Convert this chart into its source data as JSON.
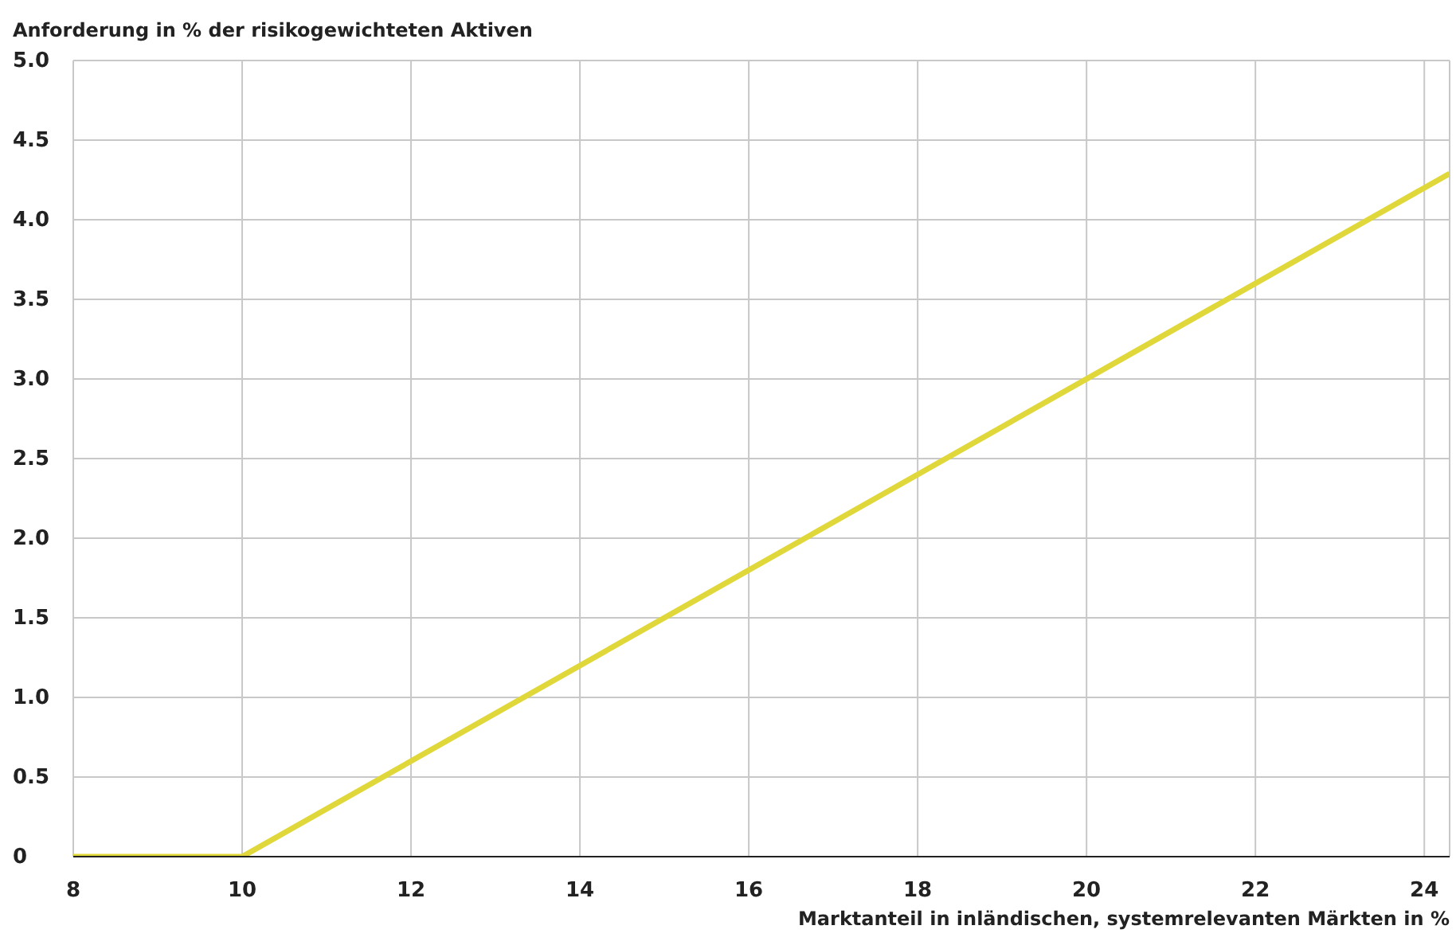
{
  "chart_data": {
    "type": "line",
    "ylabel": "Anforderung in % der risikogewichteten Aktiven",
    "xlabel": "Marktanteil in inländischen, systemrelevanten Märkten in %",
    "x": [
      8,
      10,
      24.3
    ],
    "series": [
      {
        "color": "#e0d83a",
        "values": [
          0,
          0,
          4.29
        ]
      }
    ],
    "xlim": [
      8,
      24.3
    ],
    "xticks": [
      8,
      10,
      12,
      14,
      16,
      18,
      20,
      22,
      24
    ],
    "ylim": [
      0,
      5
    ],
    "yticks": [
      0,
      {
        "value": 0.5,
        "label": "0.5"
      },
      {
        "value": 1,
        "label": "1.0"
      },
      {
        "value": 1.5,
        "label": "1.5"
      },
      {
        "value": 2,
        "label": "2.0"
      },
      {
        "value": 2.5,
        "label": "2.5"
      },
      {
        "value": 3,
        "label": "3.0"
      },
      {
        "value": 3.5,
        "label": "3.5"
      },
      {
        "value": 4,
        "label": "4.0"
      },
      {
        "value": 4.5,
        "label": "4.5"
      },
      {
        "value": 5,
        "label": "5.0"
      }
    ],
    "grid": true,
    "marker": "none",
    "line_style": "solid",
    "legend": false
  }
}
